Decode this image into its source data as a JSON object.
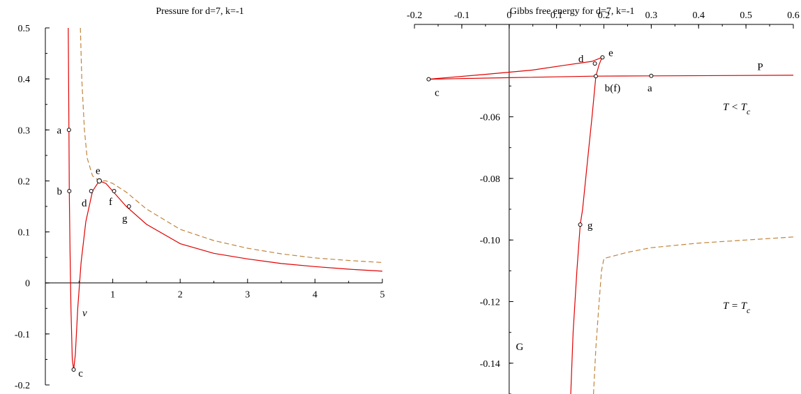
{
  "chart_data": [
    {
      "type": "line",
      "title": "Pressure for d=7, k=-1",
      "xlabel": "v",
      "ylabel": "",
      "xlim": [
        0,
        5
      ],
      "ylim": [
        -0.2,
        0.5
      ],
      "x_ticks": [
        "1",
        "2",
        "3",
        "4",
        "5"
      ],
      "x_tick_values": [
        1,
        2,
        3,
        4,
        5
      ],
      "y_ticks": [
        "-0.2",
        "-0.1",
        "0",
        "0.1",
        "0.2",
        "0.3",
        "0.4",
        "0.5"
      ],
      "y_tick_values": [
        -0.2,
        -0.1,
        0,
        0.1,
        0.2,
        0.3,
        0.4,
        0.5
      ],
      "series": [
        {
          "style": "solid",
          "color": "#e00000",
          "points": [
            [
              0.34,
              0.5
            ],
            [
              0.35,
              0.3
            ],
            [
              0.355,
              0.18
            ],
            [
              0.365,
              0.07
            ],
            [
              0.38,
              -0.05
            ],
            [
              0.4,
              -0.15
            ],
            [
              0.42,
              -0.17
            ],
            [
              0.445,
              -0.14
            ],
            [
              0.48,
              -0.05
            ],
            [
              0.53,
              0.04
            ],
            [
              0.6,
              0.12
            ],
            [
              0.7,
              0.18
            ],
            [
              0.8,
              0.2
            ],
            [
              0.9,
              0.195
            ],
            [
              1.0,
              0.18
            ],
            [
              1.2,
              0.15
            ],
            [
              1.5,
              0.115
            ],
            [
              2.0,
              0.077
            ],
            [
              2.5,
              0.058
            ],
            [
              3.0,
              0.047
            ],
            [
              3.5,
              0.038
            ],
            [
              4.0,
              0.032
            ],
            [
              4.5,
              0.027
            ],
            [
              5.0,
              0.023
            ]
          ]
        },
        {
          "style": "dashed",
          "color": "#c0843c",
          "points": [
            [
              0.52,
              0.5
            ],
            [
              0.54,
              0.4
            ],
            [
              0.58,
              0.3
            ],
            [
              0.62,
              0.245
            ],
            [
              0.7,
              0.21
            ],
            [
              0.8,
              0.2
            ],
            [
              0.9,
              0.2
            ],
            [
              1.0,
              0.195
            ],
            [
              1.2,
              0.178
            ],
            [
              1.5,
              0.145
            ],
            [
              2.0,
              0.105
            ],
            [
              2.5,
              0.083
            ],
            [
              3.0,
              0.068
            ],
            [
              3.5,
              0.057
            ],
            [
              4.0,
              0.049
            ],
            [
              4.5,
              0.044
            ],
            [
              5.0,
              0.04
            ]
          ]
        }
      ],
      "points": [
        {
          "label": "a",
          "x": 0.35,
          "y": 0.3
        },
        {
          "label": "b",
          "x": 0.355,
          "y": 0.18
        },
        {
          "label": "c",
          "x": 0.42,
          "y": -0.17
        },
        {
          "label": "d",
          "x": 0.68,
          "y": 0.18
        },
        {
          "label": "e",
          "x": 0.8,
          "y": 0.2
        },
        {
          "label": "f",
          "x": 1.02,
          "y": 0.18
        },
        {
          "label": "g",
          "x": 1.24,
          "y": 0.15
        }
      ]
    },
    {
      "type": "line",
      "title": "Gibbs free energy for d=7, k=-1",
      "xlabel": "P",
      "ylabel": "G",
      "xlim": [
        -0.2,
        0.6
      ],
      "ylim": [
        -0.15,
        -0.03
      ],
      "x_ticks": [
        "-0.2",
        "-0.1",
        "0",
        "0.1",
        "0.2",
        "0.3",
        "0.4",
        "0.5",
        "0.6"
      ],
      "x_tick_values": [
        -0.2,
        -0.1,
        0,
        0.1,
        0.2,
        0.3,
        0.4,
        0.5,
        0.6
      ],
      "y_ticks": [
        "-0.06",
        "-0.08",
        "-0.10",
        "-0.12",
        "-0.14"
      ],
      "y_tick_values": [
        -0.06,
        -0.08,
        -0.1,
        -0.12,
        -0.14
      ],
      "series": [
        {
          "style": "solid",
          "color": "#e00000",
          "points": [
            [
              -0.17,
              -0.0478
            ],
            [
              0.0,
              -0.0473
            ],
            [
              0.18,
              -0.0468
            ],
            [
              0.3,
              -0.0467
            ],
            [
              0.6,
              -0.0465
            ]
          ]
        },
        {
          "style": "solid",
          "color": "#e00000",
          "points": [
            [
              -0.17,
              -0.0478
            ],
            [
              -0.05,
              -0.0462
            ],
            [
              0.05,
              -0.0448
            ],
            [
              0.12,
              -0.0432
            ],
            [
              0.175,
              -0.042
            ],
            [
              0.196,
              -0.0407
            ]
          ]
        },
        {
          "style": "solid",
          "color": "#e00000",
          "points": [
            [
              0.196,
              -0.0407
            ],
            [
              0.19,
              -0.043
            ],
            [
              0.183,
              -0.0468
            ],
            [
              0.175,
              -0.06
            ],
            [
              0.165,
              -0.075
            ],
            [
              0.155,
              -0.09
            ],
            [
              0.15,
              -0.095
            ],
            [
              0.143,
              -0.11
            ],
            [
              0.135,
              -0.13
            ],
            [
              0.13,
              -0.15
            ]
          ]
        },
        {
          "style": "dashed",
          "color": "#c0843c",
          "points": [
            [
              0.6,
              -0.099
            ],
            [
              0.5,
              -0.1
            ],
            [
              0.4,
              -0.101
            ],
            [
              0.3,
              -0.1025
            ],
            [
              0.25,
              -0.104
            ],
            [
              0.2,
              -0.106
            ],
            [
              0.195,
              -0.11
            ],
            [
              0.19,
              -0.12
            ],
            [
              0.183,
              -0.135
            ],
            [
              0.178,
              -0.15
            ]
          ]
        }
      ],
      "points": [
        {
          "label": "a",
          "x": 0.3,
          "y": -0.0467
        },
        {
          "label": "b(f)",
          "x": 0.183,
          "y": -0.0468
        },
        {
          "label": "c",
          "x": -0.17,
          "y": -0.0478
        },
        {
          "label": "d",
          "x": 0.181,
          "y": -0.0427
        },
        {
          "label": "e",
          "x": 0.197,
          "y": -0.0407
        },
        {
          "label": "g",
          "x": 0.15,
          "y": -0.095
        }
      ],
      "annotations": [
        {
          "base": "T < T",
          "sub": "c"
        },
        {
          "base": "T = T",
          "sub": "c"
        }
      ]
    }
  ]
}
